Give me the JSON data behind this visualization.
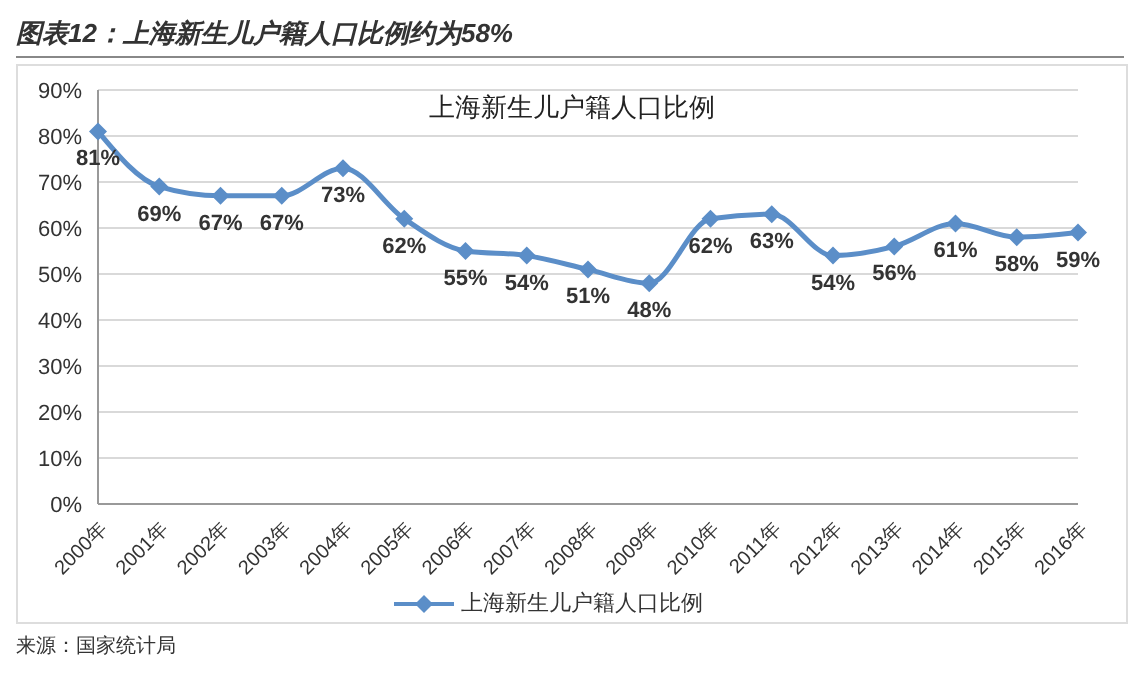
{
  "chart_data": {
    "type": "line",
    "title": "图表12：上海新生儿户籍人口比例约为58%",
    "subtitle": "上海新生儿户籍人口比例",
    "categories": [
      "2000年",
      "2001年",
      "2002年",
      "2003年",
      "2004年",
      "2005年",
      "2006年",
      "2007年",
      "2008年",
      "2009年",
      "2010年",
      "2011年",
      "2012年",
      "2013年",
      "2014年",
      "2015年",
      "2016年"
    ],
    "series": [
      {
        "name": "上海新生儿户籍人口比例",
        "color": "#5b8ec8",
        "values": [
          81,
          69,
          67,
          67,
          73,
          62,
          55,
          54,
          51,
          48,
          62,
          63,
          54,
          56,
          61,
          58,
          59
        ],
        "value_labels": [
          "81%",
          "69%",
          "67%",
          "67%",
          "73%",
          "62%",
          "55%",
          "54%",
          "51%",
          "48%",
          "62%",
          "63%",
          "54%",
          "56%",
          "61%",
          "58%",
          "59%"
        ]
      }
    ],
    "ylim": [
      0,
      90
    ],
    "yticks": [
      {
        "value": 0,
        "label": "0%"
      },
      {
        "value": 10,
        "label": "10%"
      },
      {
        "value": 20,
        "label": "20%"
      },
      {
        "value": 30,
        "label": "30%"
      },
      {
        "value": 40,
        "label": "40%"
      },
      {
        "value": 50,
        "label": "50%"
      },
      {
        "value": 60,
        "label": "60%"
      },
      {
        "value": 70,
        "label": "70%"
      },
      {
        "value": 80,
        "label": "80%"
      },
      {
        "value": 90,
        "label": "90%"
      }
    ],
    "grid": "y",
    "legend": "bottom",
    "marker": "diamond",
    "line_style": "solid",
    "annotations": [
      "来源：国家统计局"
    ]
  }
}
